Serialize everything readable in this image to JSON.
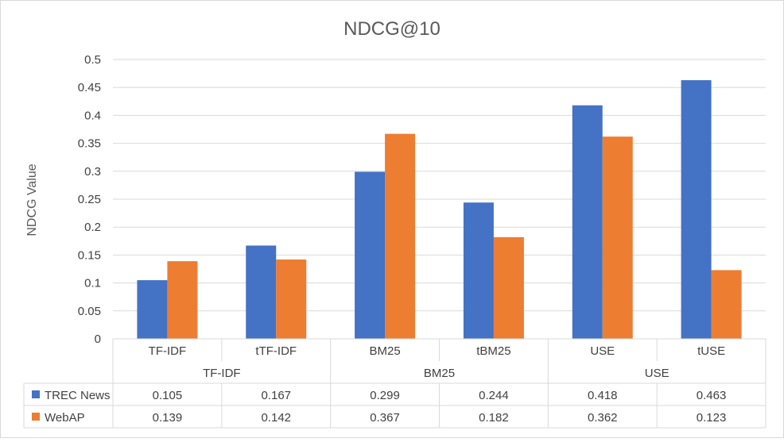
{
  "chart_data": {
    "type": "bar",
    "title": "NDCG@10",
    "ylabel": "NDCG Value",
    "xlabel": "",
    "ylim": [
      0,
      0.5
    ],
    "yticks": [
      "0",
      "0.05",
      "0.1",
      "0.15",
      "0.2",
      "0.25",
      "0.3",
      "0.35",
      "0.4",
      "0.45",
      "0.5"
    ],
    "grid": true,
    "legend": "data-table",
    "categories": [
      "TF-IDF",
      "tTF-IDF",
      "BM25",
      "tBM25",
      "USE",
      "tUSE"
    ],
    "groups": [
      {
        "label": "TF-IDF",
        "span": 2
      },
      {
        "label": "BM25",
        "span": 2
      },
      {
        "label": "USE",
        "span": 2
      }
    ],
    "series": [
      {
        "name": "TREC News",
        "color": "#4472C4",
        "values": [
          0.105,
          0.167,
          0.299,
          0.244,
          0.418,
          0.463
        ],
        "labels": [
          "0.105",
          "0.167",
          "0.299",
          "0.244",
          "0.418",
          "0.463"
        ]
      },
      {
        "name": "WebAP",
        "color": "#ED7D31",
        "values": [
          0.139,
          0.142,
          0.367,
          0.182,
          0.362,
          0.123
        ],
        "labels": [
          "0.139",
          "0.142",
          "0.367",
          "0.182",
          "0.362",
          "0.123"
        ]
      }
    ]
  }
}
